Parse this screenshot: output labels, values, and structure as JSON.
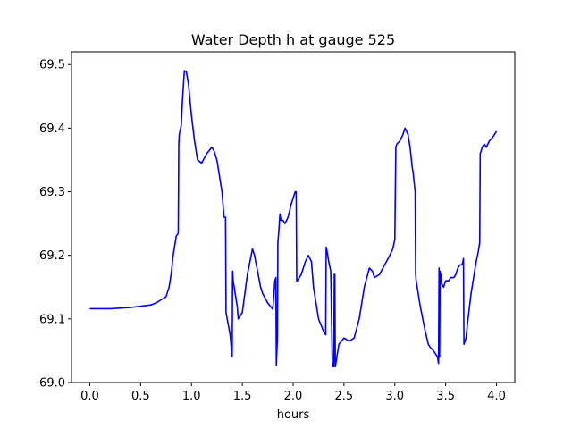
{
  "chart_data": {
    "type": "line",
    "title": "Water Depth h at gauge 525",
    "xlabel": "hours",
    "ylabel": "",
    "xlim": [
      -0.18,
      4.18
    ],
    "ylim": [
      69.0,
      69.52
    ],
    "grid": false,
    "x_ticks": [
      0.0,
      0.5,
      1.0,
      1.5,
      2.0,
      2.5,
      3.0,
      3.5,
      4.0
    ],
    "x_tick_labels": [
      "0.0",
      "0.5",
      "1.0",
      "1.5",
      "2.0",
      "2.5",
      "3.0",
      "3.5",
      "4.0"
    ],
    "y_ticks": [
      69.0,
      69.1,
      69.2,
      69.3,
      69.4,
      69.5
    ],
    "y_tick_labels": [
      "69.0",
      "69.1",
      "69.2",
      "69.3",
      "69.4",
      "69.5"
    ],
    "colors": {
      "line": "#0000ff"
    },
    "series": [
      {
        "x": [
          0.0,
          0.2,
          0.4,
          0.6,
          0.65,
          0.7,
          0.75,
          0.78,
          0.8,
          0.82,
          0.85,
          0.87,
          0.875,
          0.88,
          0.9,
          0.91,
          0.92,
          0.93,
          0.94,
          0.95,
          0.97,
          1.0,
          1.03,
          1.06,
          1.1,
          1.15,
          1.2,
          1.22,
          1.25,
          1.3,
          1.32,
          1.335,
          1.34,
          1.38,
          1.4,
          1.405,
          1.41,
          1.43,
          1.45,
          1.46,
          1.48,
          1.5,
          1.55,
          1.6,
          1.62,
          1.65,
          1.68,
          1.7,
          1.75,
          1.8,
          1.82,
          1.83,
          1.835,
          1.845,
          1.85,
          1.86,
          1.87,
          1.88,
          1.9,
          1.92,
          1.95,
          1.98,
          2.0,
          2.02,
          2.03,
          2.035,
          2.04,
          2.08,
          2.12,
          2.15,
          2.18,
          2.2,
          2.22,
          2.25,
          2.3,
          2.32,
          2.325,
          2.33,
          2.35,
          2.37,
          2.38,
          2.385,
          2.39,
          2.4,
          2.405,
          2.41,
          2.415,
          2.42,
          2.45,
          2.5,
          2.55,
          2.6,
          2.65,
          2.7,
          2.75,
          2.78,
          2.8,
          2.85,
          2.9,
          2.95,
          2.98,
          3.0,
          3.01,
          3.02,
          3.05,
          3.08,
          3.1,
          3.13,
          3.15,
          3.17,
          3.18,
          3.2,
          3.205,
          3.21,
          3.25,
          3.3,
          3.33,
          3.35,
          3.38,
          3.4,
          3.42,
          3.43,
          3.435,
          3.44,
          3.445,
          3.45,
          3.455,
          3.46,
          3.48,
          3.5,
          3.53,
          3.55,
          3.58,
          3.6,
          3.62,
          3.64,
          3.66,
          3.67,
          3.675,
          3.68,
          3.7,
          3.72,
          3.75,
          3.78,
          3.8,
          3.82,
          3.83,
          3.835,
          3.84,
          3.86,
          3.88,
          3.9,
          3.93,
          3.96,
          4.0
        ],
        "y": [
          69.116,
          69.116,
          69.118,
          69.122,
          69.125,
          69.13,
          69.135,
          69.15,
          69.17,
          69.2,
          69.23,
          69.235,
          69.375,
          69.39,
          69.405,
          69.44,
          69.465,
          69.49,
          69.49,
          69.488,
          69.47,
          69.42,
          69.38,
          69.35,
          69.345,
          69.36,
          69.37,
          69.365,
          69.35,
          69.3,
          69.26,
          69.26,
          69.11,
          69.075,
          69.04,
          69.175,
          69.16,
          69.14,
          69.12,
          69.1,
          69.105,
          69.11,
          69.17,
          69.21,
          69.2,
          69.175,
          69.15,
          69.14,
          69.125,
          69.115,
          69.16,
          69.165,
          69.027,
          69.07,
          69.22,
          69.24,
          69.265,
          69.255,
          69.255,
          69.25,
          69.26,
          69.28,
          69.29,
          69.3,
          69.3,
          69.16,
          69.16,
          69.17,
          69.19,
          69.2,
          69.19,
          69.15,
          69.13,
          69.1,
          69.08,
          69.075,
          69.213,
          69.21,
          69.19,
          69.175,
          69.08,
          69.03,
          69.025,
          69.025,
          69.17,
          69.17,
          69.025,
          69.03,
          69.06,
          69.07,
          69.065,
          69.07,
          69.1,
          69.15,
          69.18,
          69.175,
          69.165,
          69.17,
          69.185,
          69.2,
          69.21,
          69.225,
          69.37,
          69.375,
          69.38,
          69.39,
          69.4,
          69.39,
          69.37,
          69.34,
          69.33,
          69.3,
          69.17,
          69.16,
          69.12,
          69.08,
          69.06,
          69.055,
          69.05,
          69.045,
          69.04,
          69.03,
          69.18,
          69.04,
          69.175,
          69.16,
          69.17,
          69.155,
          69.15,
          69.16,
          69.16,
          69.165,
          69.165,
          69.17,
          69.18,
          69.185,
          69.185,
          69.19,
          69.195,
          69.06,
          69.07,
          69.1,
          69.14,
          69.17,
          69.19,
          69.205,
          69.215,
          69.22,
          69.36,
          69.37,
          69.375,
          69.37,
          69.38,
          69.385,
          69.395
        ]
      }
    ]
  }
}
